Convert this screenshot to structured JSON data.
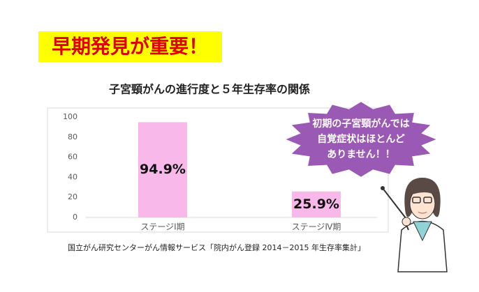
{
  "banner": "早期発見が重要！",
  "speech_bubble": [
    "初期の子宮頸がんでは",
    "自覚症状はほとんど",
    "ありません！！"
  ],
  "source": "国立がん研究センターがん情報サービス「院内がん登録 2014－2015 年生存率集計」",
  "chart_data": {
    "type": "bar",
    "title": "子宮頸がんの進行度と５年生存率の関係",
    "categories": [
      "ステージⅠ期",
      "ステージⅣ期"
    ],
    "values": [
      94.9,
      25.9
    ],
    "value_labels": [
      "94.9%",
      "25.9%"
    ],
    "color": "#f9b8ea",
    "ylim": [
      0,
      100
    ],
    "yticks": [
      0,
      20,
      40,
      60,
      80,
      100
    ],
    "grid": false
  }
}
